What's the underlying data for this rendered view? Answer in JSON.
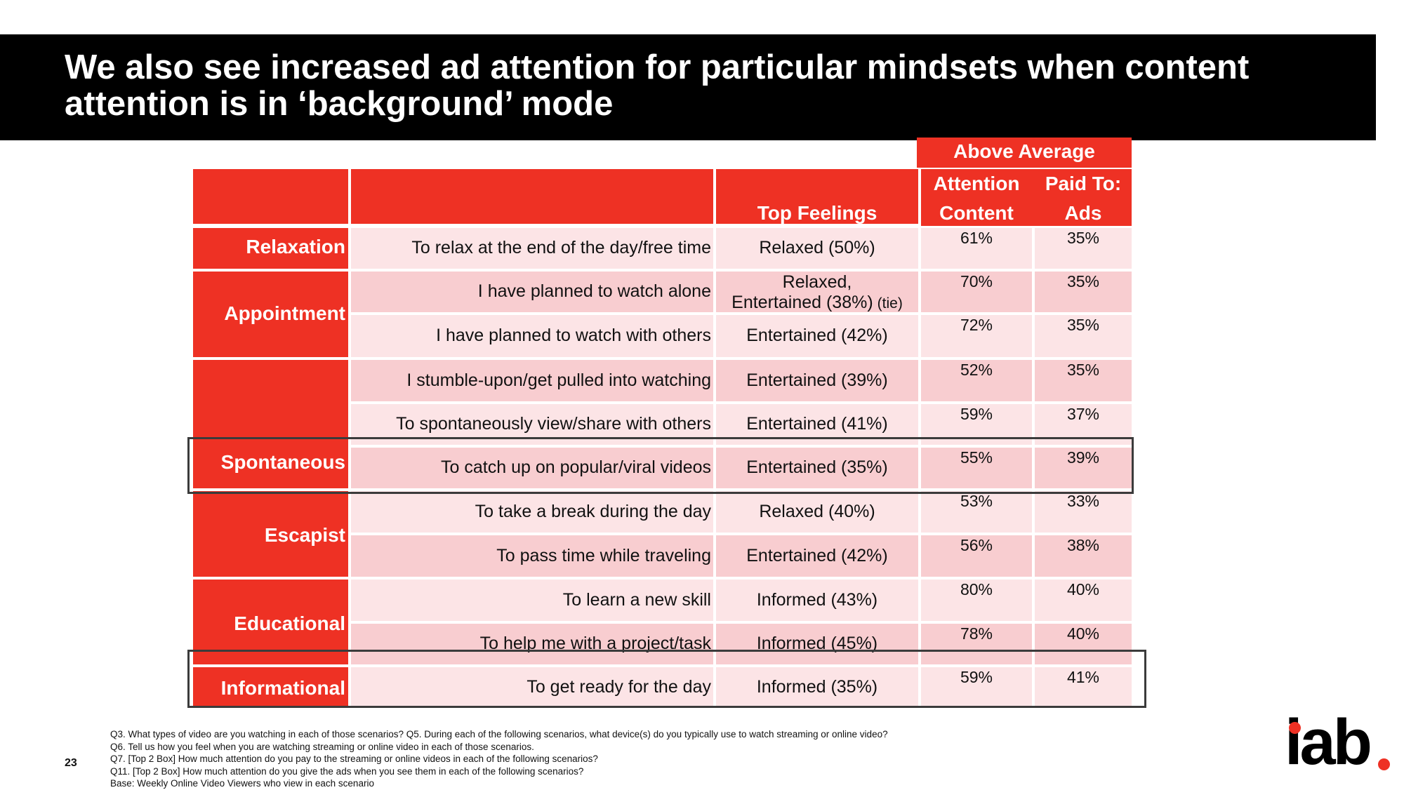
{
  "title": {
    "line1": "We also see increased ad attention for particular mindsets when content",
    "line2": "attention is in ‘background’ mode"
  },
  "table": {
    "header": {
      "top_feelings": "Top Feelings",
      "above_average": "Above Average",
      "attention": "Attention",
      "paid_to": "Paid To:",
      "content": "Content",
      "ads": "Ads"
    },
    "categories": [
      "Relaxation",
      "Appointment",
      "Spontaneous",
      "Escapist",
      "Educational",
      "Informational"
    ],
    "rows": [
      {
        "scenario": "To relax at the end of the day/free time",
        "feeling": "Relaxed (50%)",
        "content": "61%",
        "ads": "35%"
      },
      {
        "scenario": "I have planned to watch alone",
        "feeling": "Relaxed,",
        "feeling_line2": "Entertained (38%)",
        "feeling_note": "(tie)",
        "content": "70%",
        "ads": "35%"
      },
      {
        "scenario": "I have planned to watch with others",
        "feeling": "Entertained (42%)",
        "content": "72%",
        "ads": "35%"
      },
      {
        "scenario": "I stumble-upon/get pulled into watching",
        "feeling": "Entertained (39%)",
        "content": "52%",
        "ads": "35%"
      },
      {
        "scenario": "To spontaneously view/share with others",
        "feeling": "Entertained (41%)",
        "content": "59%",
        "ads": "37%"
      },
      {
        "scenario": "To catch up on popular/viral videos",
        "feeling": "Entertained (35%)",
        "content": "55%",
        "ads": "39%"
      },
      {
        "scenario": "To take a break during the day",
        "feeling": "Relaxed (40%)",
        "content": "53%",
        "ads": "33%"
      },
      {
        "scenario": "To pass time while traveling",
        "feeling": "Entertained (42%)",
        "content": "56%",
        "ads": "38%"
      },
      {
        "scenario": "To learn a new skill",
        "feeling": "Informed (43%)",
        "content": "80%",
        "ads": "40%"
      },
      {
        "scenario": "To help me with a project/task",
        "feeling": "Informed (45%)",
        "content": "78%",
        "ads": "40%"
      },
      {
        "scenario": "To get ready for the day",
        "feeling": "Informed (35%)",
        "content": "59%",
        "ads": "41%"
      }
    ]
  },
  "footnotes": [
    "Q3. What types of video are you watching in each of those scenarios?  Q5. During each of the following scenarios, what device(s) do you typically use to watch streaming or online video?",
    "Q6. Tell us how you feel when you are watching streaming or online video in each of those scenarios.",
    "Q7. [Top 2 Box] How much attention do you pay to the streaming or online videos in each of the following scenarios?",
    "Q11. [Top 2 Box] How much attention do you give the ads when you see them in each of the following scenarios?",
    "Base: Weekly Online Video Viewers who view in each scenario"
  ],
  "page_number": "23",
  "logo_text": "iab",
  "colors": {
    "accent": "#ee3124",
    "title_bg": "#000000",
    "row_light": "#fce4e6",
    "row_mid": "#f8cdd0"
  }
}
